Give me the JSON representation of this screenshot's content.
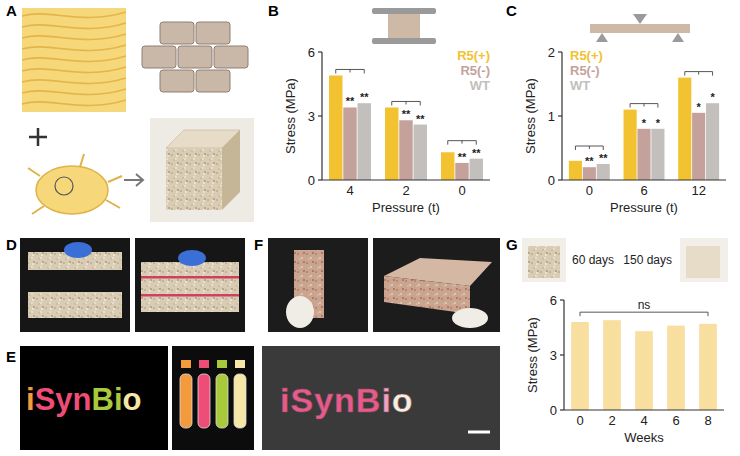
{
  "figure": {
    "panel_labels": [
      "A",
      "B",
      "C",
      "D",
      "E",
      "F",
      "G"
    ],
    "E": {
      "text": "iSynBio",
      "text_colors": [
        "#f39a3c",
        "#ee4d78",
        "#ee4d78",
        "#ee4d78",
        "#a8c93a",
        "#a8c93a",
        "#f6e7a6"
      ],
      "tube_colors": [
        "#f39a3c",
        "#ee4d78",
        "#a8c93a",
        "#f6e7a6"
      ],
      "photo_text": "iSynBio",
      "photo_text_colors": [
        "#e85a8c",
        "#e85a8c",
        "#e85a8c",
        "#e85a8c",
        "#e85a8c",
        "#f3a0c0",
        "#f4efe0"
      ]
    },
    "G_photo_labels": [
      "60 days",
      "150 days"
    ]
  },
  "chart_data": [
    {
      "type": "bar",
      "categories": [
        "4",
        "2",
        "0"
      ],
      "x_label": "Pressure (t)",
      "y_label": "Stress (MPa)",
      "ylim": [
        0,
        6
      ],
      "yticks": [
        0,
        3,
        6
      ],
      "legend": "top-right",
      "series": [
        {
          "name": "R5(+)",
          "color": "#f2c230",
          "values": [
            4.9,
            3.4,
            1.3
          ]
        },
        {
          "name": "R5(-)",
          "color": "#c4a29b",
          "values": [
            3.4,
            2.8,
            0.8
          ]
        },
        {
          "name": "WT",
          "color": "#c2bfbc",
          "values": [
            3.6,
            2.6,
            1.0
          ]
        }
      ],
      "significance": [
        [
          "**",
          "**"
        ],
        [
          "**",
          "**"
        ],
        [
          "**",
          "**"
        ]
      ]
    },
    {
      "type": "bar",
      "categories": [
        "0",
        "6",
        "12"
      ],
      "x_label": "Pressure (t)",
      "y_label": "Stress (MPa)",
      "ylim": [
        0,
        2
      ],
      "yticks": [
        0,
        1,
        2
      ],
      "legend": "top-left",
      "series": [
        {
          "name": "R5(+)",
          "color": "#f2c230",
          "values": [
            0.3,
            1.1,
            1.6
          ]
        },
        {
          "name": "R5(-)",
          "color": "#c4a29b",
          "values": [
            0.2,
            0.8,
            1.05
          ]
        },
        {
          "name": "WT",
          "color": "#c2bfbc",
          "values": [
            0.25,
            0.8,
            1.2
          ]
        }
      ],
      "significance": [
        [
          "**",
          "**"
        ],
        [
          "*",
          "*"
        ],
        [
          "*",
          "*"
        ]
      ]
    },
    {
      "type": "bar",
      "categories": [
        "0",
        "2",
        "4",
        "6",
        "8"
      ],
      "x_label": "Weeks",
      "y_label": "Stress (MPa)",
      "ylim": [
        0,
        6
      ],
      "yticks": [
        0,
        3,
        6
      ],
      "color": "#f8dfa0",
      "values": [
        4.8,
        4.9,
        4.3,
        4.6,
        4.7
      ],
      "annotation": "ns"
    }
  ]
}
